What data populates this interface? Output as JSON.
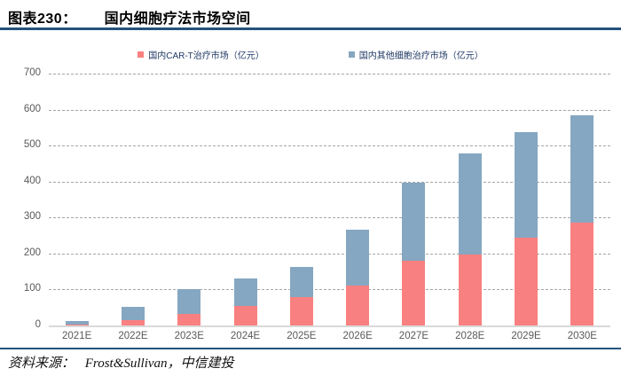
{
  "header": {
    "figure_label": "图表230：",
    "title": "国内细胞疗法市场空间"
  },
  "footer": {
    "source_label": "资料来源：",
    "source_text": "Frost&Sullivan，中信建投"
  },
  "colors": {
    "cart_red": "#F98080",
    "other_blue": "#85A7C1",
    "legend_text": "#1F3864",
    "rule_blue": "#24527C",
    "axis_text": "#595959",
    "gridline": "#A6A6A6",
    "baseline": "#D9D9D9"
  },
  "chart_data": {
    "type": "bar",
    "stacked": true,
    "title": "国内细胞疗法市场空间",
    "categories": [
      "2021E",
      "2022E",
      "2023E",
      "2024E",
      "2025E",
      "2026E",
      "2027E",
      "2028E",
      "2029E",
      "2030E"
    ],
    "series": [
      {
        "name": "国内CAR-T治疗市场（亿元）",
        "color": "#F98080",
        "values": [
          2,
          15,
          31,
          55,
          80,
          112,
          181,
          197,
          243,
          287
        ]
      },
      {
        "name": "国内其他细胞治疗市场（亿元）",
        "color": "#85A7C1",
        "values": [
          11,
          38,
          70,
          76,
          83,
          154,
          217,
          281,
          294,
          298
        ]
      }
    ],
    "totals": [
      13,
      53,
      101,
      131,
      163,
      266,
      398,
      478,
      537,
      585
    ],
    "xlabel": "",
    "ylabel": "",
    "ylim": [
      0,
      700
    ],
    "yticks": [
      0,
      100,
      200,
      300,
      400,
      500,
      600,
      700
    ],
    "grid": "horizontal-dashed",
    "legend_position": "top-center"
  }
}
